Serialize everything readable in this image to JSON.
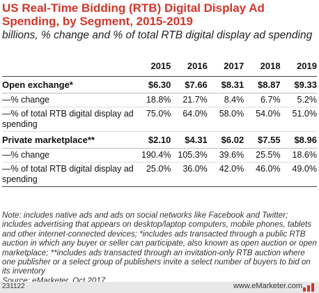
{
  "title": "US Real-Time Bidding (RTB) Digital Display Ad Spending, by Segment, 2015-2019",
  "subtitle": "billions, % change and % of total RTB digital display ad spending",
  "chart_data": {
    "type": "table",
    "columns": [
      "",
      "2015",
      "2016",
      "2017",
      "2018",
      "2019"
    ],
    "rows": [
      {
        "label": "Open exchange*",
        "values": [
          "$6.30",
          "$7.66",
          "$8.31",
          "$8.87",
          "$9.33"
        ],
        "kind": "segment"
      },
      {
        "label": "—% change",
        "values": [
          "18.8%",
          "21.7%",
          "8.4%",
          "6.7%",
          "5.2%"
        ],
        "kind": "sub"
      },
      {
        "label": "—% of total RTB digital display ad spending",
        "values": [
          "75.0%",
          "64.0%",
          "58.0%",
          "54.0%",
          "51.0%"
        ],
        "kind": "sub"
      },
      {
        "label": "Private marketplace**",
        "values": [
          "$2.10",
          "$4.31",
          "$6.02",
          "$7.55",
          "$8.96"
        ],
        "kind": "segment"
      },
      {
        "label": "—% change",
        "values": [
          "190.4%",
          "105.3%",
          "39.6%",
          "25.5%",
          "18.6%"
        ],
        "kind": "sub"
      },
      {
        "label": "—% of total RTB digital display ad spending",
        "values": [
          "25.0%",
          "36.0%",
          "42.0%",
          "46.0%",
          "49.0%"
        ],
        "kind": "last"
      }
    ]
  },
  "note": "Note: includes native ads and ads on social networks like Facebook and Twitter; includes advertising that appears on desktop/laptop computers, mobile phones, tablets and other internet-connected devices; *includes ads transacted through a public RTB auction in which any buyer or seller can participate, also known as open auction or open marketplace; **includes ads transacted through an invitation-only RTB auction where one publisher or a select group of publishers invite a select number of buyers to bid on its inventory",
  "source": "Source: eMarketer, Oct 2017",
  "footer": {
    "code": "231122",
    "brand": "www.eMarketer.com",
    "accent_color": "#d4352a"
  }
}
